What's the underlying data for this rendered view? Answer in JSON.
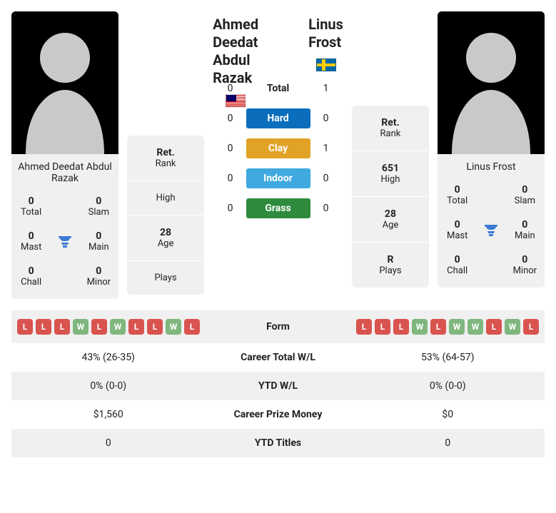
{
  "player1": {
    "name": "Ahmed Deedat Abdul Razak",
    "flag": "my",
    "card_stats": {
      "total": {
        "val": "0",
        "label": "Total"
      },
      "slam": {
        "val": "0",
        "label": "Slam"
      },
      "mast": {
        "val": "0",
        "label": "Mast"
      },
      "main": {
        "val": "0",
        "label": "Main"
      },
      "chall": {
        "val": "0",
        "label": "Chall"
      },
      "minor": {
        "val": "0",
        "label": "Minor"
      }
    },
    "info": {
      "ret_rank": {
        "val": "Ret.",
        "label": "Rank"
      },
      "high": {
        "val": "",
        "label": "High"
      },
      "age": {
        "val": "28",
        "label": "Age"
      },
      "plays": {
        "val": "",
        "label": "Plays"
      }
    },
    "form": [
      "L",
      "L",
      "L",
      "W",
      "L",
      "W",
      "L",
      "L",
      "W",
      "L"
    ],
    "career_wl": "43% (26-35)",
    "ytd_wl": "0% (0-0)",
    "prize": "$1,560",
    "ytd_titles": "0"
  },
  "player2": {
    "name": "Linus Frost",
    "flag": "se",
    "card_stats": {
      "total": {
        "val": "0",
        "label": "Total"
      },
      "slam": {
        "val": "0",
        "label": "Slam"
      },
      "mast": {
        "val": "0",
        "label": "Mast"
      },
      "main": {
        "val": "0",
        "label": "Main"
      },
      "chall": {
        "val": "0",
        "label": "Chall"
      },
      "minor": {
        "val": "0",
        "label": "Minor"
      }
    },
    "info": {
      "ret_rank": {
        "val": "Ret.",
        "label": "Rank"
      },
      "high": {
        "val": "651",
        "label": "High"
      },
      "age": {
        "val": "28",
        "label": "Age"
      },
      "plays": {
        "val": "R",
        "label": "Plays"
      }
    },
    "form": [
      "L",
      "L",
      "L",
      "W",
      "L",
      "W",
      "W",
      "L",
      "W",
      "L"
    ],
    "career_wl": "53% (64-57)",
    "ytd_wl": "0% (0-0)",
    "prize": "$0",
    "ytd_titles": "0"
  },
  "h2h": {
    "total": {
      "p1": "0",
      "label": "Total",
      "p2": "1"
    },
    "hard": {
      "p1": "0",
      "label": "Hard",
      "p2": "0"
    },
    "clay": {
      "p1": "0",
      "label": "Clay",
      "p2": "1"
    },
    "indoor": {
      "p1": "0",
      "label": "Indoor",
      "p2": "0"
    },
    "grass": {
      "p1": "0",
      "label": "Grass",
      "p2": "0"
    }
  },
  "bottom_labels": {
    "form": "Form",
    "career_wl": "Career Total W/L",
    "ytd_wl": "YTD W/L",
    "prize": "Career Prize Money",
    "ytd_titles": "YTD Titles"
  },
  "colors": {
    "hard": "#0a6ebd",
    "clay": "#e0a325",
    "indoor": "#3fa9e0",
    "grass": "#2e8b3d",
    "win": "#7fb77e",
    "loss": "#d9534f",
    "panel_bg": "#f0f0f0",
    "trophy": "#3a7bd5"
  }
}
